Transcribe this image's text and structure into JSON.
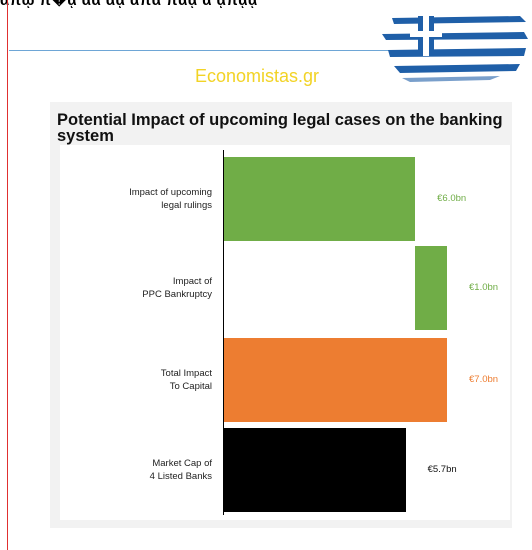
{
  "header": {
    "site_name": "Economistas.gr"
  },
  "colors": {
    "green": "#70ad47",
    "orange": "#ed7d31",
    "black": "#000000",
    "site_name": "#f2d326",
    "flag_blue": "#1f5fa8"
  },
  "chart_data": {
    "type": "bar",
    "orientation": "horizontal",
    "title": "Potential Impact of upcoming legal cases on the banking system",
    "categories": [
      "Impact of upcoming\nlegal rulings",
      "Impact of\nPPC Bankruptcy",
      "Total Impact\nTo Capital",
      "Market Cap of\n4 Listed Banks"
    ],
    "bars": [
      {
        "start": 0,
        "end": 6.0,
        "label": "€6.0bn",
        "color": "#70ad47",
        "label_color": "#70ad47"
      },
      {
        "start": 6.0,
        "end": 7.0,
        "label": "€1.0bn",
        "color": "#70ad47",
        "label_color": "#70ad47"
      },
      {
        "start": 0,
        "end": 7.0,
        "label": "€7.0bn",
        "color": "#ed7d31",
        "label_color": "#ed7d31"
      },
      {
        "start": 0,
        "end": 5.7,
        "label": "€5.7bn",
        "color": "#000000",
        "label_color": "#111111"
      }
    ],
    "xlim": [
      0,
      7.0
    ],
    "unit": "€bn",
    "grid": false,
    "legend": "none"
  }
}
